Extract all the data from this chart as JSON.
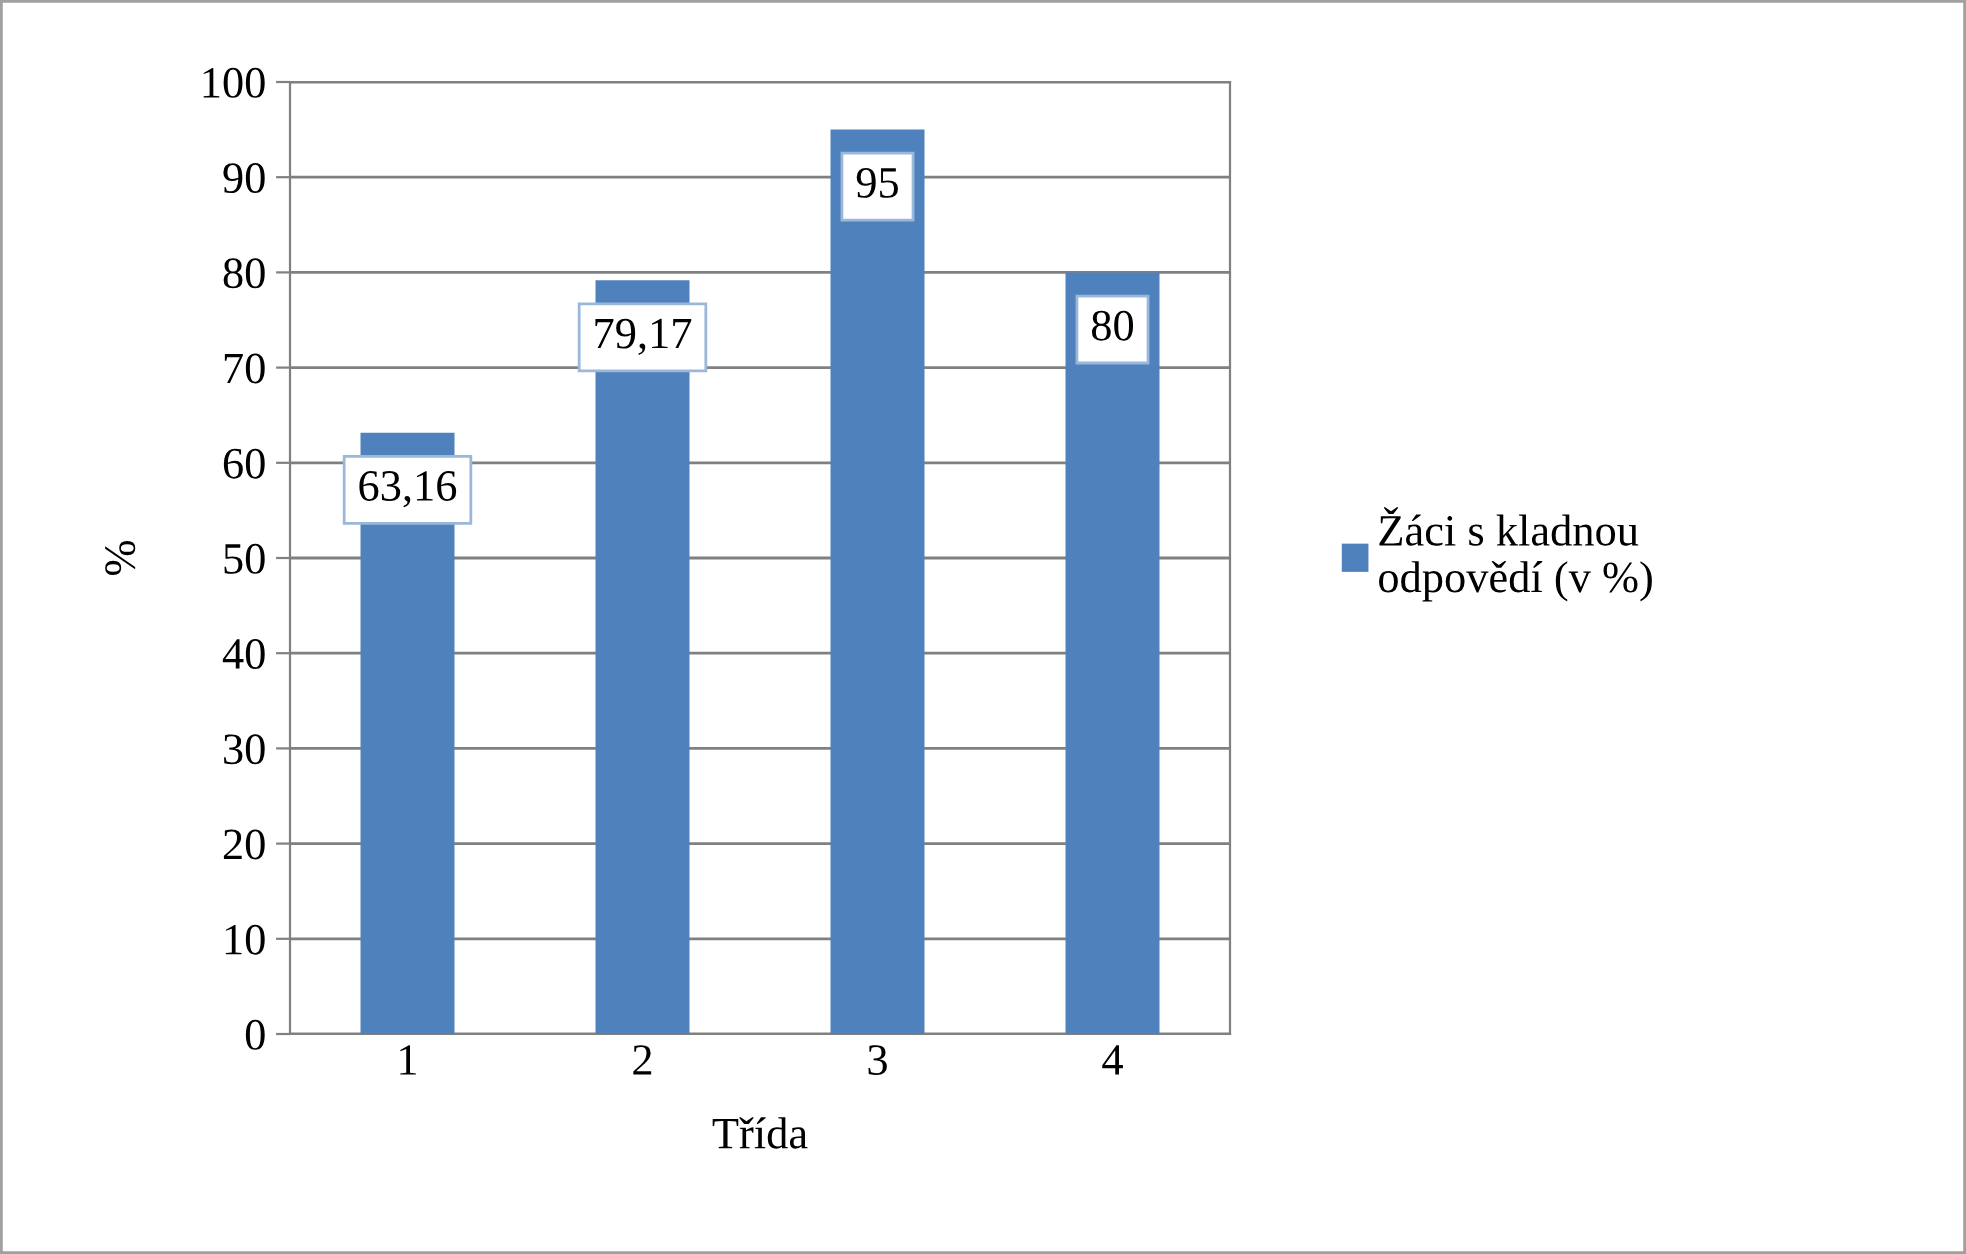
{
  "chart_data": {
    "type": "bar",
    "xlabel": "Třída",
    "ylabel": "%",
    "categories": [
      "1",
      "2",
      "3",
      "4"
    ],
    "series": [
      {
        "name": "Žáci s kladnou odpovědí (v %)",
        "color": "#4f81bd",
        "values": [
          63.16,
          79.17,
          95,
          80
        ],
        "value_labels": [
          "63,16",
          "79,17",
          "95",
          "80"
        ]
      }
    ],
    "ylim": [
      0,
      100
    ],
    "yticks": [
      0,
      10,
      20,
      30,
      40,
      50,
      60,
      70,
      80,
      90,
      100
    ],
    "grid": "y",
    "legend": "right"
  }
}
